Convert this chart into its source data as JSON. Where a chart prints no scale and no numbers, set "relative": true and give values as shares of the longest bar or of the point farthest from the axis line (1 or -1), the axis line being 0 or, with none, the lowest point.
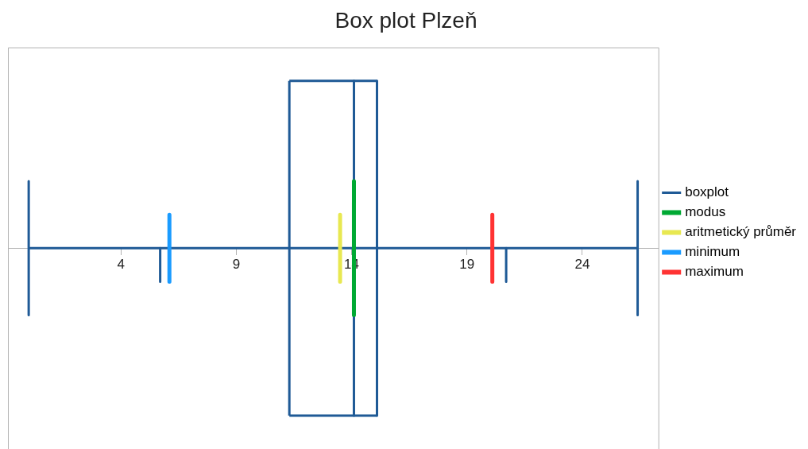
{
  "chart_data": {
    "type": "line",
    "title": "Box plot Plzeň",
    "relative": true,
    "xlim": [
      -0.9,
      27.3
    ],
    "xticks": [
      4,
      9,
      14,
      19,
      24
    ],
    "grid": false,
    "legend": "right",
    "marker": "none",
    "line_style": "solid",
    "series": [
      {
        "name": "boxplot",
        "color": "#1f5a96",
        "x": [
          0,
          26.4
        ],
        "values": [
          0,
          0
        ]
      },
      {
        "color": "#1f5a96",
        "x": [
          0,
          0
        ],
        "values": [
          0.4,
          -0.4
        ]
      },
      {
        "color": "#1f5a96",
        "x": [
          26.4,
          26.4
        ],
        "values": [
          0.4,
          -0.4
        ]
      },
      {
        "color": "#1f5a96",
        "x": [
          5.7,
          5.7
        ],
        "values": [
          0,
          -0.2
        ]
      },
      {
        "color": "#1f5a96",
        "x": [
          20.7,
          20.7
        ],
        "values": [
          0,
          -0.2
        ]
      },
      {
        "color": "#1f5a96",
        "x": [
          11.3,
          11.3
        ],
        "values": [
          -1,
          1
        ]
      },
      {
        "color": "#1f5a96",
        "x": [
          15.1,
          15.1
        ],
        "values": [
          1,
          -1
        ]
      },
      {
        "color": "#1f5a96",
        "x": [
          11.3,
          15.1
        ],
        "values": [
          1,
          1
        ]
      },
      {
        "color": "#1f5a96",
        "x": [
          11.3,
          15.1
        ],
        "values": [
          -1,
          -1
        ]
      },
      {
        "color": "#1f5a96",
        "x": [
          14.1,
          14.1
        ],
        "values": [
          1,
          -1
        ]
      },
      {
        "name": "modus",
        "color": "#00a933",
        "x": [
          14.1,
          14.1
        ],
        "values": [
          0.4,
          -0.4
        ]
      },
      {
        "name": "aritmetický průměr",
        "color": "#e8e851",
        "x": [
          13.5,
          13.5
        ],
        "values": [
          0.2,
          -0.2
        ]
      },
      {
        "name": "minimum",
        "color": "#1a9bff",
        "x": [
          6.1,
          6.1
        ],
        "values": [
          0.2,
          -0.2
        ]
      },
      {
        "name": "maximum",
        "color": "#ff3333",
        "x": [
          20.1,
          20.1
        ],
        "values": [
          0.2,
          -0.2
        ]
      }
    ]
  }
}
